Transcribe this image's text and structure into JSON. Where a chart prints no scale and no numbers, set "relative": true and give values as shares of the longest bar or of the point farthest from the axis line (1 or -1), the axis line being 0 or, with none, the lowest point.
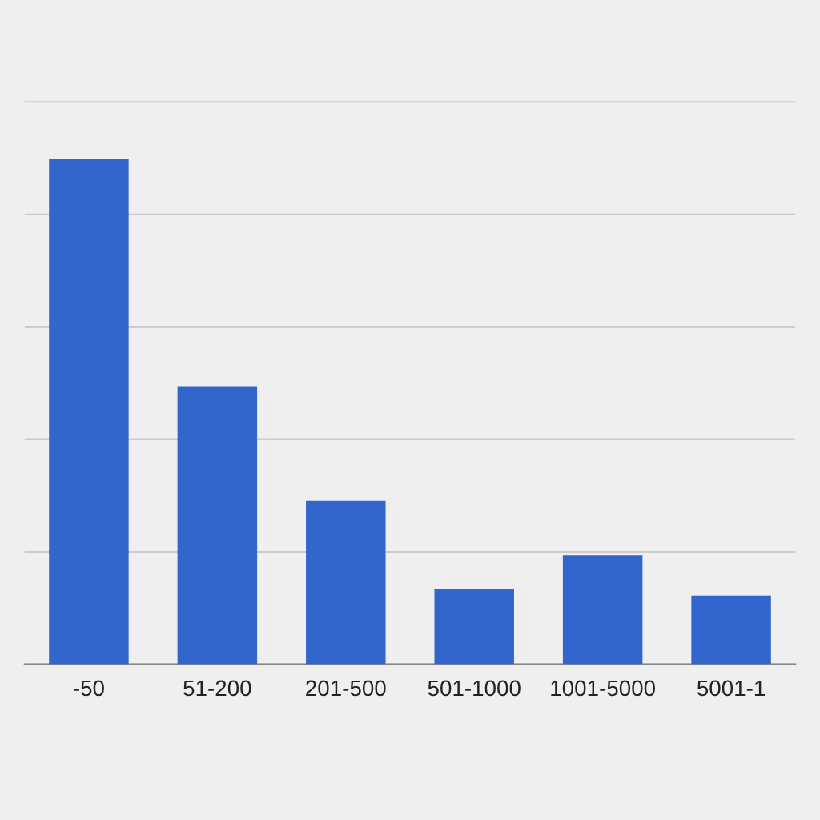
{
  "chart_data": {
    "type": "bar",
    "relative": true,
    "categories": [
      "-50",
      "51-200",
      "201-500",
      "501-1000",
      "1001-5000",
      "5001-1"
    ],
    "values": [
      1.0,
      0.55,
      0.323,
      0.148,
      0.216,
      0.136
    ],
    "color": "#3366cc",
    "grid": "y",
    "legend": false
  }
}
